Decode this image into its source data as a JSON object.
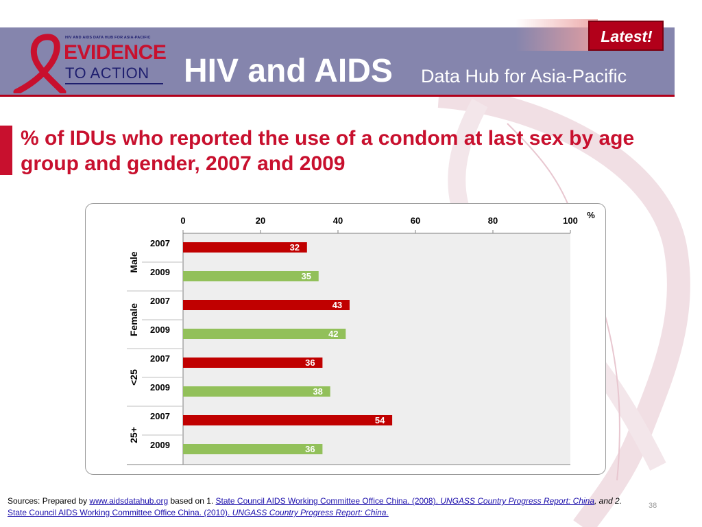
{
  "header": {
    "logo_small": "HIV AND AIDS DATA HUB FOR ASIA-PACIFIC",
    "logo_line1": "EVIDENCE",
    "logo_line2": "TO ACTION",
    "title": "HIV and AIDS",
    "subtitle": "Data Hub for Asia-Pacific",
    "badge": "Latest!"
  },
  "slide": {
    "title": "% of IDUs who reported the use of a condom at last sex by age group and gender, 2007 and 2009"
  },
  "colors": {
    "header_bg": "#8585ad",
    "accent_red": "#c8102e",
    "bar_2007": "#c00000",
    "bar_2009": "#92c05a",
    "plot_bg": "#eeeeee"
  },
  "chart_data": {
    "type": "bar",
    "orientation": "horizontal",
    "unit": "%",
    "xlim": [
      0,
      100
    ],
    "ticks": [
      "0",
      "20",
      "40",
      "60",
      "80",
      "100"
    ],
    "tick_values": [
      0,
      20,
      40,
      60,
      80,
      100
    ],
    "groups": [
      {
        "label": "Male",
        "rows": [
          {
            "year": "2007",
            "value": 32
          },
          {
            "year": "2009",
            "value": 35
          }
        ]
      },
      {
        "label": "Female",
        "rows": [
          {
            "year": "2007",
            "value": 43
          },
          {
            "year": "2009",
            "value": 42
          }
        ]
      },
      {
        "label": "<25",
        "rows": [
          {
            "year": "2007",
            "value": 36
          },
          {
            "year": "2009",
            "value": 38
          }
        ]
      },
      {
        "label": "25+",
        "rows": [
          {
            "year": "2007",
            "value": 54
          },
          {
            "year": "2009",
            "value": 36
          }
        ]
      }
    ]
  },
  "footer": {
    "prefix": "Sources: Prepared by ",
    "link1": "www.aidsdatahub.org",
    "mid1": "  based on  1. ",
    "link2": "State Council AIDS Working Committee Office China. (2008). ",
    "link2_italic": "UNGASS Country Progress Report: China",
    "mid2": ", and 2. ",
    "link3": "State Council AIDS Working Committee Office China. (2010). ",
    "link3_italic": "UNGASS Country Progress Report: China.",
    "page_number": "38"
  }
}
